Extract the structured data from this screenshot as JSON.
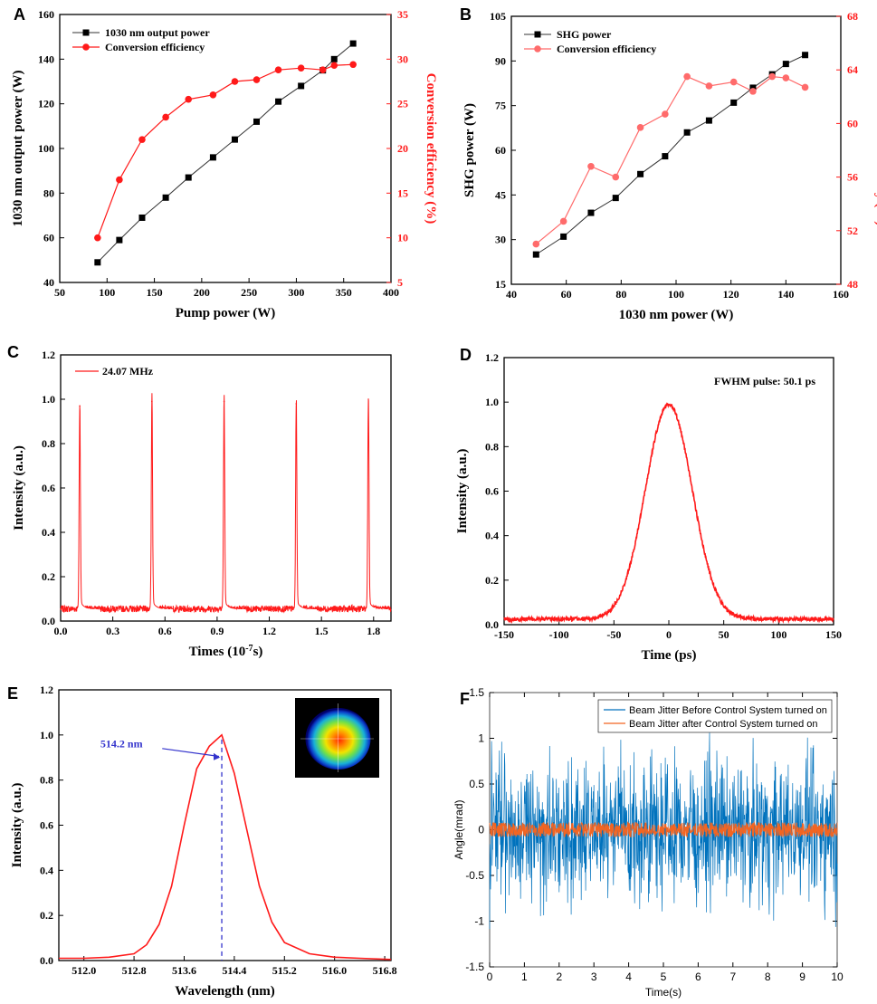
{
  "colors": {
    "black": "#000000",
    "red": "#ff1a1a",
    "pink": "#ff6b6b",
    "blue": "#0072bd",
    "orange": "#f26522",
    "dash": "#3333cc"
  },
  "chart_data": [
    {
      "id": "A",
      "type": "line",
      "panel_label": "A",
      "xlabel": "Pump power (W)",
      "ylabel": "1030 nm output power (W)",
      "y2label": "Conversion efficiency (%)",
      "xlim": [
        50,
        400
      ],
      "ylim": [
        40,
        160
      ],
      "y2lim": [
        5,
        35
      ],
      "xticks": [
        "50",
        "100",
        "150",
        "200",
        "250",
        "300",
        "350",
        "400"
      ],
      "yticks": [
        "40",
        "60",
        "80",
        "100",
        "120",
        "140",
        "160"
      ],
      "y2ticks": [
        "5",
        "10",
        "15",
        "20",
        "25",
        "30",
        "35"
      ],
      "legend": [
        "1030 nm output power",
        "Conversion efficiency"
      ],
      "x": [
        90,
        113,
        137,
        162,
        186,
        212,
        235,
        258,
        281,
        305,
        328,
        340,
        360
      ],
      "series": [
        {
          "name": "1030 nm output power",
          "axis": "left",
          "marker": "square",
          "values": [
            49,
            59,
            69,
            78,
            87,
            96,
            104,
            112,
            121,
            128,
            135,
            140,
            147
          ]
        },
        {
          "name": "Conversion efficiency",
          "axis": "right",
          "marker": "circle",
          "values": [
            10,
            16.5,
            21,
            23.5,
            25.5,
            26,
            27.5,
            27.7,
            28.8,
            29,
            28.8,
            29.3,
            29.4
          ]
        }
      ]
    },
    {
      "id": "B",
      "type": "line",
      "panel_label": "B",
      "xlabel": "1030 nm power (W)",
      "ylabel": "SHG power (W)",
      "y2label": "Conversion efficiency (%)",
      "xlim": [
        40,
        160
      ],
      "ylim": [
        15,
        105
      ],
      "y2lim": [
        48,
        68
      ],
      "xticks": [
        "40",
        "60",
        "80",
        "100",
        "120",
        "140",
        "160"
      ],
      "yticks": [
        "15",
        "30",
        "45",
        "60",
        "75",
        "90",
        "105"
      ],
      "y2ticks": [
        "48",
        "52",
        "56",
        "60",
        "64",
        "68"
      ],
      "legend": [
        "SHG power",
        "Conversion efficiency"
      ],
      "x": [
        49,
        59,
        69,
        78,
        87,
        96,
        104,
        112,
        121,
        128,
        135,
        140,
        147
      ],
      "series": [
        {
          "name": "SHG power",
          "axis": "left",
          "marker": "square",
          "values": [
            25,
            31,
            39,
            44,
            52,
            58,
            66,
            70,
            76,
            81,
            85.5,
            89,
            92
          ]
        },
        {
          "name": "Conversion efficiency",
          "axis": "right",
          "marker": "circle",
          "values": [
            51,
            52.7,
            56.8,
            56,
            59.7,
            60.7,
            63.5,
            62.8,
            63.1,
            62.4,
            63.5,
            63.4,
            62.7
          ]
        }
      ]
    },
    {
      "id": "C",
      "type": "line",
      "panel_label": "C",
      "xlabel": "Times (10",
      "xlabel_sup": "-7",
      "xlabel_end": "s)",
      "ylabel": "Intensity (a.u.)",
      "xlim": [
        0,
        1.9
      ],
      "ylim": [
        0,
        1.2
      ],
      "xticks": [
        "0.0",
        "0.3",
        "0.6",
        "0.9",
        "1.2",
        "1.5",
        "1.8"
      ],
      "yticks": [
        "0.0",
        "0.2",
        "0.4",
        "0.6",
        "0.8",
        "1.0",
        "1.2"
      ],
      "legend": [
        "24.07 MHz"
      ],
      "peaks_x": [
        0.11,
        0.525,
        0.94,
        1.355,
        1.77
      ],
      "peaks_y": [
        0.97,
        0.99,
        0.99,
        0.98,
        1.0
      ],
      "baseline": 0.055
    },
    {
      "id": "D",
      "type": "line",
      "panel_label": "D",
      "xlabel": "Time (ps)",
      "ylabel": "Intensity (a.u.)",
      "xlim": [
        -150,
        150
      ],
      "ylim": [
        0,
        1.2
      ],
      "xticks": [
        "-150",
        "-100",
        "-50",
        "0",
        "50",
        "100",
        "150"
      ],
      "yticks": [
        "0.0",
        "0.2",
        "0.4",
        "0.6",
        "0.8",
        "1.0",
        "1.2"
      ],
      "annotation": "FWHM pulse: 50.1 ps",
      "center": 0,
      "fwhm_ps": 50.1,
      "peak": 0.99,
      "baseline": 0.025
    },
    {
      "id": "E",
      "type": "line",
      "panel_label": "E",
      "xlabel": "Wavelength (nm)",
      "ylabel": "Intensity (a.u.)",
      "xlim": [
        511.6,
        516.9
      ],
      "ylim": [
        0,
        1.2
      ],
      "xticks": [
        "512.0",
        "512.8",
        "513.6",
        "514.4",
        "515.2",
        "516.0",
        "516.8"
      ],
      "yticks": [
        "0.0",
        "0.2",
        "0.4",
        "0.6",
        "0.8",
        "1.0",
        "1.2"
      ],
      "annotation": "514.2 nm",
      "peak_x": 514.2,
      "x": [
        511.6,
        512.0,
        512.4,
        512.8,
        513.0,
        513.2,
        513.4,
        513.6,
        513.8,
        514.0,
        514.2,
        514.4,
        514.6,
        514.8,
        515.0,
        515.2,
        515.6,
        516.0,
        516.4,
        516.9
      ],
      "values": [
        0.01,
        0.01,
        0.015,
        0.03,
        0.07,
        0.16,
        0.33,
        0.6,
        0.85,
        0.95,
        1.0,
        0.83,
        0.58,
        0.33,
        0.17,
        0.08,
        0.03,
        0.015,
        0.01,
        0.005
      ]
    },
    {
      "id": "F",
      "type": "line",
      "panel_label": "F",
      "xlabel": "Time(s)",
      "ylabel": "Angle(mrad)",
      "xlim": [
        0,
        10
      ],
      "ylim": [
        -1.5,
        1.5
      ],
      "xticks": [
        "0",
        "1",
        "2",
        "3",
        "4",
        "5",
        "6",
        "7",
        "8",
        "9",
        "10"
      ],
      "yticks": [
        "-1.5",
        "-1",
        "-0.5",
        "0",
        "0.5",
        "1",
        "1.5"
      ],
      "legend": [
        "Beam Jitter Before Control System turned on",
        "Beam Jitter after Control System turned on"
      ],
      "series": [
        {
          "name": "Beam Jitter Before Control System turned on",
          "amplitude": 1.1
        },
        {
          "name": "Beam Jitter after Control System turned on",
          "amplitude": 0.08
        }
      ]
    }
  ]
}
